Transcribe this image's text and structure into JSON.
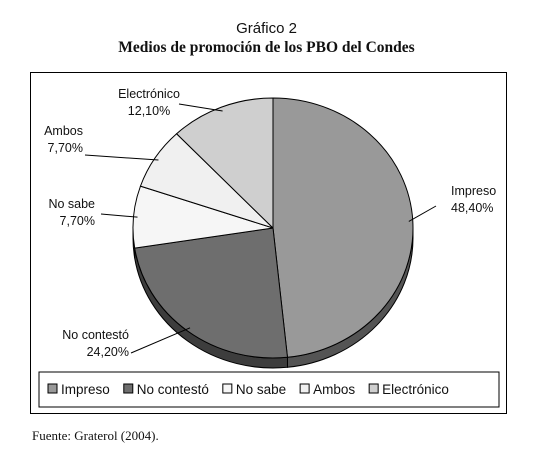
{
  "figure": {
    "label": "Gráfico 2",
    "title": "Medios de promoción de los PBO del Condes",
    "source": "Fuente: Graterol (2004)."
  },
  "chart_data": {
    "type": "pie",
    "style": "3d",
    "start_angle": "12 o'clock, clockwise",
    "legend_position": "bottom",
    "slices": [
      {
        "label": "Impreso",
        "value": 48.4,
        "value_label": "48,40%",
        "color": "#999999"
      },
      {
        "label": "No contestó",
        "value": 24.2,
        "value_label": "24,20%",
        "color": "#6e6e6e"
      },
      {
        "label": "No sabe",
        "value": 7.7,
        "value_label": "7,70%",
        "color": "#f6f6f6"
      },
      {
        "label": "Ambos",
        "value": 7.7,
        "value_label": "7,70%",
        "color": "#f0f0f0"
      },
      {
        "label": "Electrónico",
        "value": 12.1,
        "value_label": "12,10%",
        "color": "#cfcfcf"
      }
    ]
  }
}
